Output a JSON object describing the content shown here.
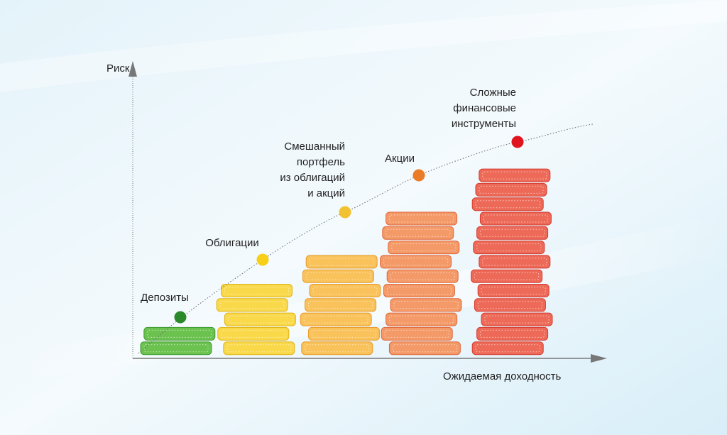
{
  "axes": {
    "y_label": "Риск",
    "x_label": "Ожидаемая доходность"
  },
  "items": [
    {
      "label": [
        "Депозиты"
      ],
      "coins": 2
    },
    {
      "label": [
        "Облигации"
      ],
      "coins": 5
    },
    {
      "label": [
        "Смешанный",
        "портфель",
        "из облигаций",
        "и акций"
      ],
      "coins": 7
    },
    {
      "label": [
        "Акции"
      ],
      "coins": 10
    },
    {
      "label": [
        "Сложные",
        "финансовые",
        "инструменты"
      ],
      "coins": 13
    }
  ]
}
